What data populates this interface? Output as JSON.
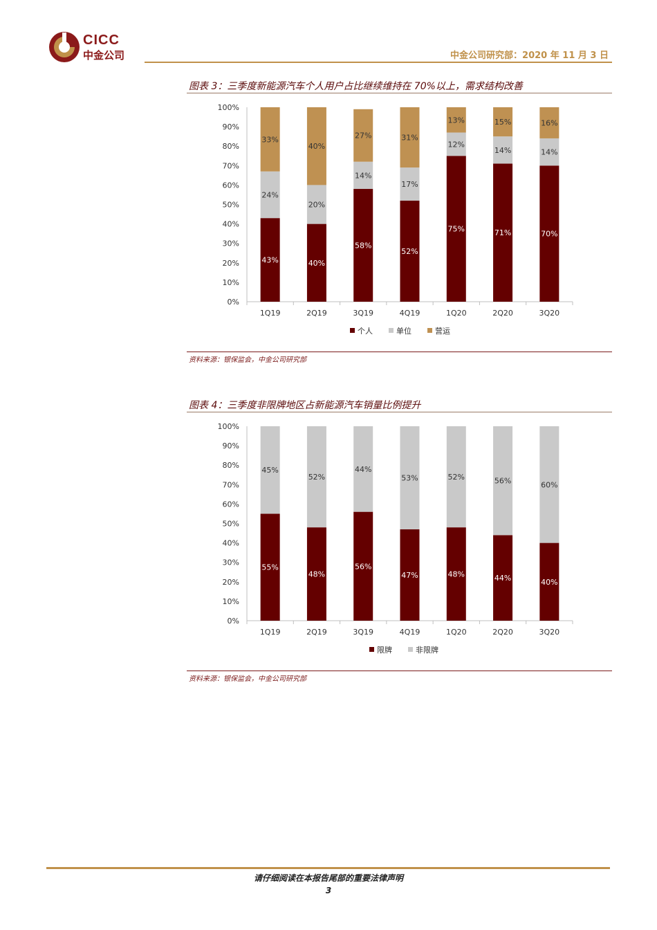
{
  "header": {
    "logo_en": "CICC",
    "logo_cn": "中金公司",
    "dept_date": "中金公司研究部：2020 年 11 月 3 日",
    "colors": {
      "brand": "#8b1a1a",
      "gold": "#c0914a"
    }
  },
  "figure3": {
    "title": "图表 3：三季度新能源汽车个人用户占比继续维持在 70%以上，需求结构改善",
    "source": "资料来源：银保监会，中金公司研究部",
    "chart_data": {
      "type": "bar",
      "stacked": true,
      "categories": [
        "1Q19",
        "2Q19",
        "3Q19",
        "4Q19",
        "1Q20",
        "2Q20",
        "3Q20"
      ],
      "series": [
        {
          "name": "个人",
          "values": [
            43,
            40,
            58,
            52,
            75,
            71,
            70
          ],
          "labels": [
            "43%",
            "40%",
            "58%",
            "52%",
            "75%",
            "71%",
            "70%"
          ],
          "color": "#640000"
        },
        {
          "name": "单位",
          "values": [
            24,
            20,
            14,
            17,
            12,
            14,
            14
          ],
          "labels": [
            "24%",
            "20%",
            "14%",
            "17%",
            "12%",
            "14%",
            "14%"
          ],
          "color": "#c9c9c9"
        },
        {
          "name": "营运",
          "values": [
            33,
            40,
            27,
            31,
            13,
            15,
            16
          ],
          "labels": [
            "33%",
            "40%",
            "27%",
            "31%",
            "13%",
            "15%",
            "16%"
          ],
          "color": "#bf9152"
        }
      ],
      "ylim": [
        0,
        100
      ],
      "yticks": [
        "0%",
        "10%",
        "20%",
        "30%",
        "40%",
        "50%",
        "60%",
        "70%",
        "80%",
        "90%",
        "100%"
      ],
      "legend": "bottom",
      "grid": false
    }
  },
  "figure4": {
    "title": "图表 4：三季度非限牌地区占新能源汽车销量比例提升",
    "source": "资料来源：银保监会，中金公司研究部",
    "chart_data": {
      "type": "bar",
      "stacked": true,
      "categories": [
        "1Q19",
        "2Q19",
        "3Q19",
        "4Q19",
        "1Q20",
        "2Q20",
        "3Q20"
      ],
      "series": [
        {
          "name": "限牌",
          "values": [
            55,
            48,
            56,
            47,
            48,
            44,
            40
          ],
          "labels": [
            "55%",
            "48%",
            "56%",
            "47%",
            "48%",
            "44%",
            "40%"
          ],
          "color": "#640000"
        },
        {
          "name": "非限牌",
          "values": [
            45,
            52,
            44,
            53,
            52,
            56,
            60
          ],
          "labels": [
            "45%",
            "52%",
            "44%",
            "53%",
            "52%",
            "56%",
            "60%"
          ],
          "color": "#c9c9c9"
        }
      ],
      "ylim": [
        0,
        100
      ],
      "yticks": [
        "0%",
        "10%",
        "20%",
        "30%",
        "40%",
        "50%",
        "60%",
        "70%",
        "80%",
        "90%",
        "100%"
      ],
      "legend": "bottom",
      "grid": false
    }
  },
  "footer": {
    "disclaimer": "请仔细阅读在本报告尾部的重要法律声明",
    "page_number": "3"
  }
}
